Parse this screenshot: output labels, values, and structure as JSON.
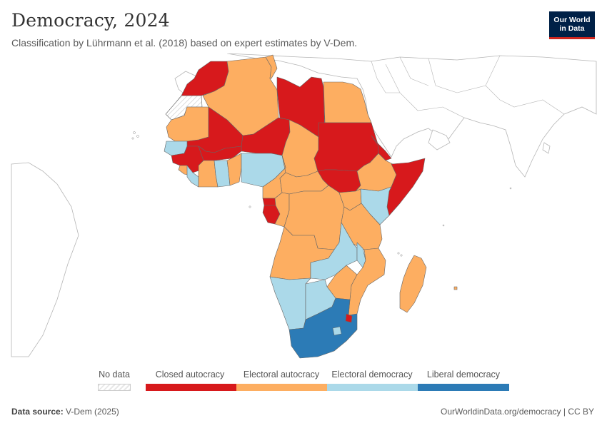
{
  "header": {
    "title": "Democracy, 2024",
    "subtitle": "Classification by Lührmann et al. (2018) based on expert estimates by V-Dem.",
    "logo_line1": "Our World",
    "logo_line2": "in Data"
  },
  "legend": {
    "no_data": "No data",
    "categories": [
      {
        "label": "Closed autocracy",
        "color": "#d7191c"
      },
      {
        "label": "Electoral autocracy",
        "color": "#fdae61"
      },
      {
        "label": "Electoral democracy",
        "color": "#abd9e9"
      },
      {
        "label": "Liberal democracy",
        "color": "#2c7bb6"
      }
    ]
  },
  "footer": {
    "source_label": "Data source:",
    "source_value": "V-Dem (2025)",
    "link": "OurWorldinData.org/democracy | CC BY"
  },
  "colors": {
    "no_data_fill": "#ffffff",
    "border": "#555555",
    "background_land": "#ffffff"
  },
  "map": {
    "regions": [
      {
        "name": "Morocco",
        "category": "Closed autocracy"
      },
      {
        "name": "Western Sahara",
        "category": "No data"
      },
      {
        "name": "Algeria",
        "category": "Electoral autocracy"
      },
      {
        "name": "Tunisia",
        "category": "Electoral autocracy"
      },
      {
        "name": "Libya",
        "category": "Closed autocracy"
      },
      {
        "name": "Egypt",
        "category": "Electoral autocracy"
      },
      {
        "name": "Mauritania",
        "category": "Electoral autocracy"
      },
      {
        "name": "Mali",
        "category": "Closed autocracy"
      },
      {
        "name": "Niger",
        "category": "Closed autocracy"
      },
      {
        "name": "Chad",
        "category": "Electoral autocracy"
      },
      {
        "name": "Sudan",
        "category": "Closed autocracy"
      },
      {
        "name": "South Sudan",
        "category": "Closed autocracy"
      },
      {
        "name": "Eritrea",
        "category": "Closed autocracy"
      },
      {
        "name": "Ethiopia",
        "category": "Electoral autocracy"
      },
      {
        "name": "Somalia",
        "category": "Closed autocracy"
      },
      {
        "name": "Senegal",
        "category": "Electoral democracy"
      },
      {
        "name": "Guinea",
        "category": "Closed autocracy"
      },
      {
        "name": "Burkina Faso",
        "category": "Closed autocracy"
      },
      {
        "name": "Sierra Leone",
        "category": "Electoral autocracy"
      },
      {
        "name": "Ivory Coast",
        "category": "Electoral autocracy"
      },
      {
        "name": "Ghana",
        "category": "Electoral democracy"
      },
      {
        "name": "Nigeria",
        "category": "Electoral democracy"
      },
      {
        "name": "Cameroon",
        "category": "Electoral autocracy"
      },
      {
        "name": "Central African Republic",
        "category": "Electoral autocracy"
      },
      {
        "name": "Gabon",
        "category": "Closed autocracy"
      },
      {
        "name": "Equatorial Guinea",
        "category": "Closed autocracy"
      },
      {
        "name": "Republic of Congo",
        "category": "Electoral autocracy"
      },
      {
        "name": "DR Congo",
        "category": "Electoral autocracy"
      },
      {
        "name": "Kenya",
        "category": "Electoral democracy"
      },
      {
        "name": "Tanzania",
        "category": "Electoral autocracy"
      },
      {
        "name": "Angola",
        "category": "Electoral autocracy"
      },
      {
        "name": "Zambia",
        "category": "Electoral democracy"
      },
      {
        "name": "Malawi",
        "category": "Electoral democracy"
      },
      {
        "name": "Mozambique",
        "category": "Electoral autocracy"
      },
      {
        "name": "Zimbabwe",
        "category": "Electoral autocracy"
      },
      {
        "name": "Namibia",
        "category": "Electoral democracy"
      },
      {
        "name": "Botswana",
        "category": "Electoral democracy"
      },
      {
        "name": "South Africa",
        "category": "Liberal democracy"
      },
      {
        "name": "Lesotho",
        "category": "Electoral democracy"
      },
      {
        "name": "Eswatini",
        "category": "Closed autocracy"
      },
      {
        "name": "Madagascar",
        "category": "Electoral autocracy"
      },
      {
        "name": "Mauritius",
        "category": "Electoral autocracy"
      }
    ]
  }
}
